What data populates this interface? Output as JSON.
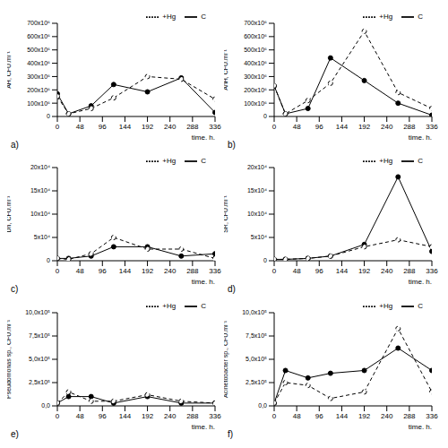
{
  "chart_data": [
    {
      "type": "line",
      "title": "a)",
      "x_label": "time, h.",
      "y_label": "AH, CFU.ml⁻¹",
      "x": [
        0,
        24,
        72,
        120,
        192,
        264,
        336
      ],
      "xlim": [
        0,
        336
      ],
      "xticks": [
        0,
        48,
        96,
        144,
        192,
        240,
        288,
        336
      ],
      "ylim": [
        0,
        700000000
      ],
      "yticks": [
        0,
        {
          "value": 100000000,
          "label": "100x10⁶"
        },
        {
          "value": 200000000,
          "label": "200x10⁶"
        },
        {
          "value": 300000000,
          "label": "300x10⁶"
        },
        {
          "value": 400000000,
          "label": "400x10⁶"
        },
        {
          "value": 500000000,
          "label": "500x10⁶"
        },
        {
          "value": 600000000,
          "label": "600x10⁶"
        },
        {
          "value": 700000000,
          "label": "700x10⁶"
        }
      ],
      "legend": "top",
      "series": [
        {
          "name": "C",
          "color": "#000000",
          "marker": "filled",
          "line_style": "solid",
          "values": [
            170000000,
            20000000,
            80000000,
            240000000,
            185000000,
            290000000,
            30000000
          ]
        },
        {
          "name": "+Hg",
          "color": "#000000",
          "marker": "open",
          "line_style": "dashed",
          "values": [
            150000000,
            20000000,
            60000000,
            140000000,
            300000000,
            280000000,
            130000000
          ]
        }
      ]
    },
    {
      "type": "line",
      "title": "b)",
      "x_label": "time, h.",
      "y_label": "AnH, CFU.ml⁻¹",
      "x": [
        0,
        24,
        72,
        120,
        192,
        264,
        336
      ],
      "xlim": [
        0,
        336
      ],
      "xticks": [
        0,
        48,
        96,
        144,
        192,
        240,
        288,
        336
      ],
      "ylim": [
        0,
        700000000
      ],
      "yticks": [
        0,
        {
          "value": 100000000,
          "label": "100x10⁶"
        },
        {
          "value": 200000000,
          "label": "200x10⁶"
        },
        {
          "value": 300000000,
          "label": "300x10⁶"
        },
        {
          "value": 400000000,
          "label": "400x10⁶"
        },
        {
          "value": 500000000,
          "label": "500x10⁶"
        },
        {
          "value": 600000000,
          "label": "600x10⁶"
        },
        {
          "value": 700000000,
          "label": "700x10⁶"
        }
      ],
      "legend": "top",
      "series": [
        {
          "name": "C",
          "color": "#000000",
          "marker": "filled",
          "line_style": "solid",
          "values": [
            230000000,
            20000000,
            60000000,
            440000000,
            270000000,
            100000000,
            10000000
          ]
        },
        {
          "name": "+Hg",
          "color": "#000000",
          "marker": "open",
          "line_style": "dashed",
          "values": [
            230000000,
            20000000,
            120000000,
            250000000,
            640000000,
            180000000,
            60000000
          ]
        }
      ]
    },
    {
      "type": "line",
      "title": "c)",
      "x_label": "time, h.",
      "y_label": "Dn, CFU.ml⁻¹",
      "x": [
        0,
        24,
        72,
        120,
        192,
        264,
        336
      ],
      "xlim": [
        0,
        336
      ],
      "xticks": [
        0,
        48,
        96,
        144,
        192,
        240,
        288,
        336
      ],
      "ylim": [
        0,
        200000
      ],
      "yticks": [
        0,
        {
          "value": 50000,
          "label": "5x10⁴"
        },
        {
          "value": 100000,
          "label": "10x10⁴"
        },
        {
          "value": 150000,
          "label": "15x10⁴"
        },
        {
          "value": 200000,
          "label": "20x10⁴"
        }
      ],
      "legend": "top",
      "series": [
        {
          "name": "C",
          "color": "#000000",
          "marker": "filled",
          "line_style": "solid",
          "values": [
            5000,
            5000,
            10000,
            30000,
            30000,
            10000,
            15000
          ]
        },
        {
          "name": "+Hg",
          "color": "#000000",
          "marker": "open",
          "line_style": "dashed",
          "values": [
            5000,
            3000,
            15000,
            50000,
            25000,
            25000,
            5000
          ]
        }
      ]
    },
    {
      "type": "line",
      "title": "d)",
      "x_label": "time, h.",
      "y_label": "SR, CFU.ml⁻¹",
      "x": [
        0,
        24,
        72,
        120,
        192,
        264,
        336
      ],
      "xlim": [
        0,
        336
      ],
      "xticks": [
        0,
        48,
        96,
        144,
        192,
        240,
        288,
        336
      ],
      "ylim": [
        0,
        200000
      ],
      "yticks": [
        0,
        {
          "value": 50000,
          "label": "5x10⁴"
        },
        {
          "value": 100000,
          "label": "10x10⁴"
        },
        {
          "value": 150000,
          "label": "15x10⁴"
        },
        {
          "value": 200000,
          "label": "20x10⁴"
        }
      ],
      "legend": "top",
      "series": [
        {
          "name": "C",
          "color": "#000000",
          "marker": "filled",
          "line_style": "solid",
          "values": [
            3000,
            3000,
            5000,
            10000,
            35000,
            180000,
            20000
          ]
        },
        {
          "name": "+Hg",
          "color": "#000000",
          "marker": "open",
          "line_style": "dashed",
          "values": [
            3000,
            3000,
            5000,
            10000,
            30000,
            45000,
            30000
          ]
        }
      ]
    },
    {
      "type": "line",
      "title": "e)",
      "x_label": "time, h.",
      "y_label": "Pseudomonas sp., CFU.ml⁻¹",
      "x": [
        0,
        24,
        72,
        120,
        192,
        264,
        336
      ],
      "xlim": [
        0,
        336
      ],
      "xticks": [
        0,
        48,
        96,
        144,
        192,
        240,
        288,
        336
      ],
      "ylim": [
        0,
        1000000
      ],
      "yticks": [
        {
          "value": 0,
          "label": "0,0"
        },
        {
          "value": 250000,
          "label": "2,5x10⁵"
        },
        {
          "value": 500000,
          "label": "5,0x10⁵"
        },
        {
          "value": 750000,
          "label": "7,5x10⁵"
        },
        {
          "value": 1000000,
          "label": "10,0x10⁵"
        }
      ],
      "legend": "top",
      "series": [
        {
          "name": "C",
          "color": "#000000",
          "marker": "filled",
          "line_style": "solid",
          "values": [
            30000,
            100000,
            100000,
            30000,
            100000,
            30000,
            30000
          ]
        },
        {
          "name": "+Hg",
          "color": "#000000",
          "marker": "open",
          "line_style": "dashed",
          "values": [
            30000,
            150000,
            50000,
            50000,
            120000,
            50000,
            30000
          ]
        }
      ]
    },
    {
      "type": "line",
      "title": "f)",
      "x_label": "time, h.",
      "y_label": "Acinetobacter sp., CFU.ml⁻¹",
      "x": [
        0,
        24,
        72,
        120,
        192,
        264,
        336
      ],
      "xlim": [
        0,
        336
      ],
      "xticks": [
        0,
        48,
        96,
        144,
        192,
        240,
        288,
        336
      ],
      "ylim": [
        0,
        1000000
      ],
      "yticks": [
        {
          "value": 0,
          "label": "0,0"
        },
        {
          "value": 250000,
          "label": "2,5x10⁵"
        },
        {
          "value": 500000,
          "label": "5,0x10⁵"
        },
        {
          "value": 750000,
          "label": "7,5x10⁵"
        },
        {
          "value": 1000000,
          "label": "10,0x10⁵"
        }
      ],
      "legend": "top",
      "series": [
        {
          "name": "C",
          "color": "#000000",
          "marker": "filled",
          "line_style": "solid",
          "values": [
            30000,
            380000,
            300000,
            350000,
            380000,
            620000,
            380000
          ]
        },
        {
          "name": "+Hg",
          "color": "#000000",
          "marker": "open",
          "line_style": "dashed",
          "values": [
            30000,
            250000,
            220000,
            80000,
            150000,
            830000,
            150000
          ]
        }
      ]
    }
  ]
}
